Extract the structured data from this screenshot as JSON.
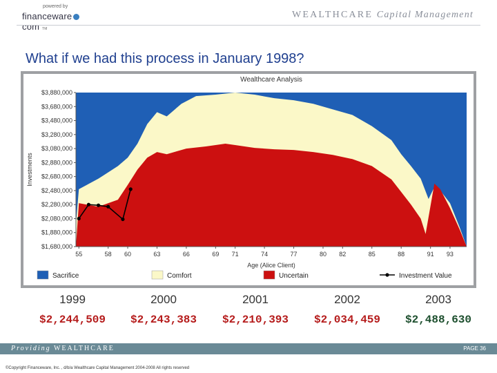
{
  "header": {
    "powered_by": "powered by",
    "logo_text_left": "financeware",
    "logo_text_right": "com",
    "logo_reg": "TM",
    "brand_main": "WEALTHCARE",
    "brand_sub": "Capital Management"
  },
  "headline": "What if we had this process in January 1998?",
  "chart_data": {
    "type": "area",
    "title": "Wealthcare Analysis",
    "xlabel": "Age (Alice Client)",
    "ylabel": "Investments",
    "x_ticks": [
      "55",
      "58",
      "60",
      "63",
      "66",
      "69",
      "71",
      "74",
      "77",
      "80",
      "82",
      "85",
      "88",
      "91",
      "93"
    ],
    "y_ticks": [
      "$3,880,000",
      "$3,680,000",
      "$3,480,000",
      "$3,280,000",
      "$3,080,000",
      "$2,880,000",
      "$2,680,000",
      "$2,480,000",
      "$2,280,000",
      "$2,080,000",
      "$1,880,000",
      "$1,680,000"
    ],
    "ylim": [
      1680000,
      3880000
    ],
    "xlim": [
      54.7,
      94.7
    ],
    "series": [
      {
        "name": "Sacrifice",
        "color": "#1f5fb5",
        "x": [
          54.7,
          94.7
        ],
        "y": [
          3880000,
          3880000
        ]
      },
      {
        "name": "Comfort",
        "color": "#fbf8c8",
        "x": [
          54.7,
          55.0,
          57.0,
          59.0,
          60.0,
          61.0,
          62.0,
          63.0,
          64.0,
          65.5,
          67.0,
          69.0,
          71.0,
          73.0,
          75.0,
          77.0,
          79.0,
          81.0,
          83.0,
          85.0,
          87.0,
          88.0,
          89.0,
          90.0,
          90.8,
          91.4,
          92.0,
          93.0,
          94.0,
          94.7
        ],
        "y": [
          2000000,
          2500000,
          2650000,
          2830000,
          2950000,
          3150000,
          3430000,
          3600000,
          3540000,
          3720000,
          3830000,
          3850000,
          3880000,
          3850000,
          3800000,
          3770000,
          3720000,
          3640000,
          3560000,
          3400000,
          3200000,
          3000000,
          2830000,
          2650000,
          2360000,
          2530000,
          2480000,
          2300000,
          1950000,
          1680000
        ]
      },
      {
        "name": "Uncertain",
        "color": "#cc1010",
        "x": [
          54.7,
          55.0,
          57.0,
          59.0,
          60.0,
          61.0,
          62.0,
          63.0,
          64.0,
          66.0,
          68.0,
          70.0,
          71.0,
          73.0,
          75.0,
          77.0,
          79.0,
          81.0,
          83.0,
          85.0,
          87.0,
          88.0,
          89.0,
          90.0,
          90.5,
          91.4,
          92.0,
          93.0,
          94.0,
          94.7
        ],
        "y": [
          1680000,
          2300000,
          2250000,
          2350000,
          2560000,
          2780000,
          2950000,
          3030000,
          3000000,
          3080000,
          3110000,
          3150000,
          3130000,
          3090000,
          3070000,
          3060000,
          3030000,
          2990000,
          2930000,
          2830000,
          2640000,
          2460000,
          2280000,
          2080000,
          1860000,
          2580000,
          2500000,
          2230000,
          1920000,
          1680000
        ]
      },
      {
        "name": "Investment Value",
        "color": "#000000",
        "x": [
          55.0,
          56.0,
          57.0,
          58.0,
          59.5,
          60.3
        ],
        "y": [
          2080000,
          2280000,
          2270000,
          2250000,
          2070000,
          2500000
        ]
      }
    ],
    "grid": false,
    "legend": "bottom"
  },
  "years": [
    {
      "year": "1999",
      "value": "$2,244,509"
    },
    {
      "year": "2000",
      "value": "$2,243,383"
    },
    {
      "year": "2001",
      "value": "$2,210,393"
    },
    {
      "year": "2002",
      "value": "$2,034,459"
    },
    {
      "year": "2003",
      "value": "$2,488,630"
    }
  ],
  "footer": {
    "providing_word": "Providing",
    "providing_brand": "WEALTHCARE",
    "page": "PAGE 36",
    "copyright": "©Copyright Financeware, Inc. , d/b/a Wealthcare Capital Management 2004-2008 All rights reserved"
  }
}
